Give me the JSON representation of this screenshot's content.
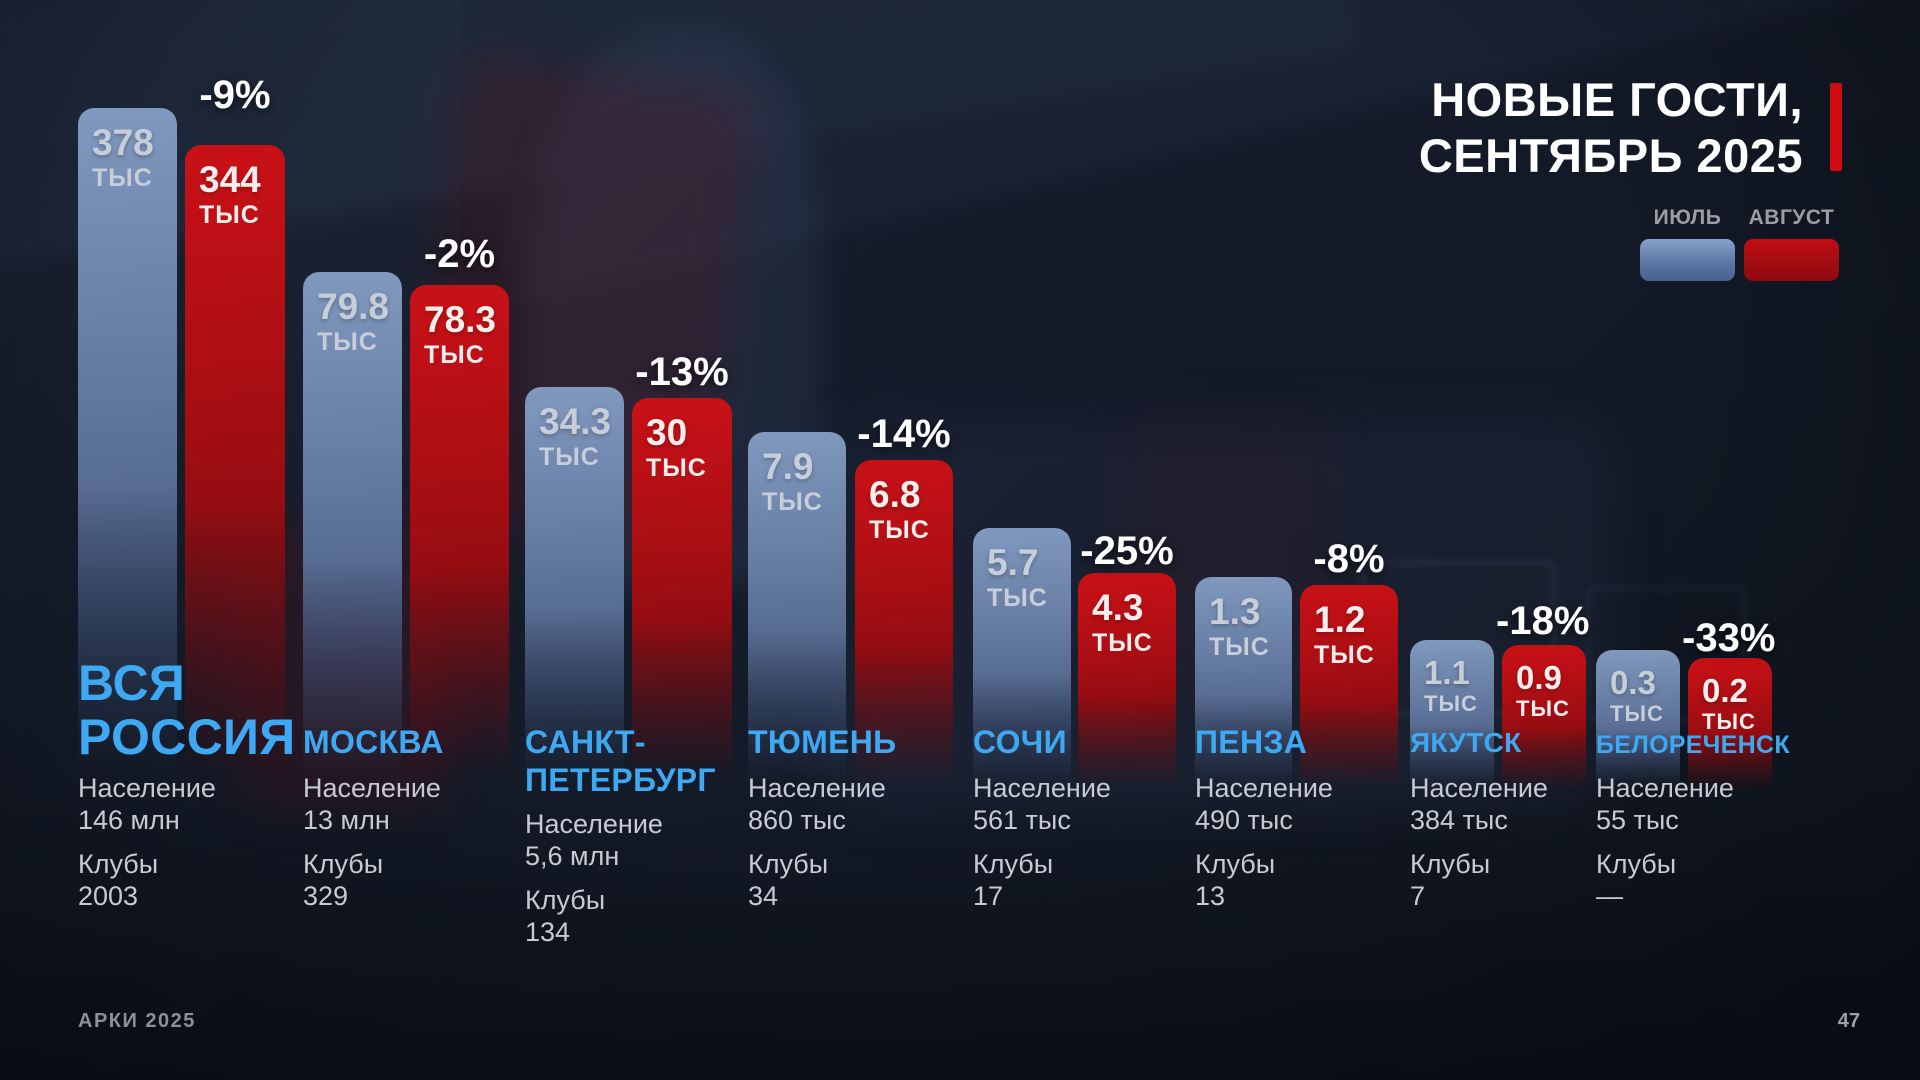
{
  "title": {
    "line1": "НОВЫЕ ГОСТИ,",
    "line2": "СЕНТЯБРЬ 2025"
  },
  "legend": {
    "july": "ИЮЛЬ",
    "august": "АВГУСТ"
  },
  "units_label": "ТЫС",
  "footer": {
    "brand": "АРКИ 2025",
    "page": "47"
  },
  "colors": {
    "background": "#131A27",
    "accent_red": "#CF0B11",
    "city_label_blue": "#3FA8F2",
    "bar_july_top": "#8099BF",
    "bar_july_bottom": "#3A4C71",
    "bar_august_top": "#C91117",
    "bar_august_bottom": "#660A0D",
    "info_text": "#C6CAD2",
    "muted_text": "#8B909A"
  },
  "cities": [
    {
      "name": "ВСЯ\nРОССИЯ",
      "july": "378",
      "august": "344",
      "change": "-9%",
      "population_label": "Население",
      "population": "146 млн",
      "clubs_label": "Клубы",
      "clubs": "2003"
    },
    {
      "name": "МОСКВА",
      "july": "79.8",
      "august": "78.3",
      "change": "-2%",
      "population_label": "Население",
      "population": "13 млн",
      "clubs_label": "Клубы",
      "clubs": "329"
    },
    {
      "name": "САНКТ-\nПЕТЕРБУРГ",
      "july": "34.3",
      "august": "30",
      "change": "-13%",
      "population_label": "Население",
      "population": "5,6 млн",
      "clubs_label": "Клубы",
      "clubs": "134"
    },
    {
      "name": "ТЮМЕНЬ",
      "july": "7.9",
      "august": "6.8",
      "change": "-14%",
      "population_label": "Население",
      "population": "860 тыс",
      "clubs_label": "Клубы",
      "clubs": "34"
    },
    {
      "name": "СОЧИ",
      "july": "5.7",
      "august": "4.3",
      "change": "-25%",
      "population_label": "Население",
      "population": "561 тыс",
      "clubs_label": "Клубы",
      "clubs": "17"
    },
    {
      "name": "ПЕНЗА",
      "july": "1.3",
      "august": "1.2",
      "change": "-8%",
      "population_label": "Население",
      "population": "490 тыс",
      "clubs_label": "Клубы",
      "clubs": "13"
    },
    {
      "name": "ЯКУТСК",
      "july": "1.1",
      "august": "0.9",
      "change": "-18%",
      "population_label": "Население",
      "population": "384 тыс",
      "clubs_label": "Клубы",
      "clubs": "7"
    },
    {
      "name": "БЕЛОРЕЧЕНСК",
      "july": "0.3",
      "august": "0.2",
      "change": "-33%",
      "population_label": "Население",
      "population": "55 тыс",
      "clubs_label": "Клубы",
      "clubs": "—"
    }
  ],
  "chart_data": {
    "type": "bar",
    "title": "НОВЫЕ ГОСТИ, СЕНТЯБРЬ 2025",
    "unit": "тыс",
    "categories": [
      "ВСЯ РОССИЯ",
      "МОСКВА",
      "САНКТ-ПЕТЕРБУРГ",
      "ТЮМЕНЬ",
      "СОЧИ",
      "ПЕНЗА",
      "ЯКУТСК",
      "БЕЛОРЕЧЕНСК"
    ],
    "series": [
      {
        "name": "ИЮЛЬ",
        "values": [
          378,
          79.8,
          34.3,
          7.9,
          5.7,
          1.3,
          1.1,
          0.3
        ]
      },
      {
        "name": "АВГУСТ",
        "values": [
          344,
          78.3,
          30,
          6.8,
          4.3,
          1.2,
          0.9,
          0.2
        ]
      }
    ],
    "change_pct": [
      -9,
      -2,
      -13,
      -14,
      -25,
      -8,
      -18,
      -33
    ],
    "population": [
      "146 млн",
      "13 млн",
      "5,6 млн",
      "860 тыс",
      "561 тыс",
      "490 тыс",
      "384 тыс",
      "55 тыс"
    ],
    "clubs": [
      "2003",
      "329",
      "134",
      "34",
      "17",
      "13",
      "7",
      "—"
    ],
    "legend_position": "top-right",
    "grid": false
  }
}
